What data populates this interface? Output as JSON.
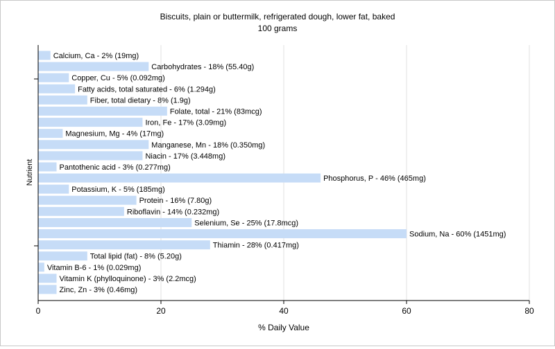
{
  "chart_data": {
    "type": "bar",
    "orientation": "horizontal",
    "title": "Biscuits, plain or buttermilk, refrigerated dough, lower fat, baked",
    "subtitle": "100 grams",
    "xlabel": "% Daily Value",
    "ylabel": "Nutrient",
    "xlim": [
      0,
      80
    ],
    "xticks": [
      "0",
      "20",
      "40",
      "60",
      "80"
    ],
    "grid": true,
    "bar_color": "#c6dcf7",
    "categories": [
      "Calcium, Ca",
      "Carbohydrates",
      "Copper, Cu",
      "Fatty acids, total saturated",
      "Fiber, total dietary",
      "Folate, total",
      "Iron, Fe",
      "Magnesium, Mg",
      "Manganese, Mn",
      "Niacin",
      "Pantothenic acid",
      "Phosphorus, P",
      "Potassium, K",
      "Protein",
      "Riboflavin",
      "Selenium, Se",
      "Sodium, Na",
      "Thiamin",
      "Total lipid (fat)",
      "Vitamin B-6",
      "Vitamin K (phylloquinone)",
      "Zinc, Zn"
    ],
    "values": [
      2,
      18,
      5,
      6,
      8,
      21,
      17,
      4,
      18,
      17,
      3,
      46,
      5,
      16,
      14,
      25,
      60,
      28,
      8,
      1,
      3,
      3
    ],
    "labels": [
      "Calcium, Ca - 2% (19mg)",
      "Carbohydrates - 18% (55.40g)",
      "Copper, Cu - 5% (0.092mg)",
      "Fatty acids, total saturated - 6% (1.294g)",
      "Fiber, total dietary - 8% (1.9g)",
      "Folate, total - 21% (83mcg)",
      "Iron, Fe - 17% (3.09mg)",
      "Magnesium, Mg - 4% (17mg)",
      "Manganese, Mn - 18% (0.350mg)",
      "Niacin - 17% (3.448mg)",
      "Pantothenic acid - 3% (0.277mg)",
      "Phosphorus, P - 46% (465mg)",
      "Potassium, K - 5% (185mg)",
      "Protein - 16% (7.80g)",
      "Riboflavin - 14% (0.232mg)",
      "Selenium, Se - 25% (17.8mcg)",
      "Sodium, Na - 60% (1451mg)",
      "Thiamin - 28% (0.417mg)",
      "Total lipid (fat) - 8% (5.20g)",
      "Vitamin B-6 - 1% (0.029mg)",
      "Vitamin K (phylloquinone) - 3% (2.2mcg)",
      "Zinc, Zn - 3% (0.46mg)"
    ]
  }
}
